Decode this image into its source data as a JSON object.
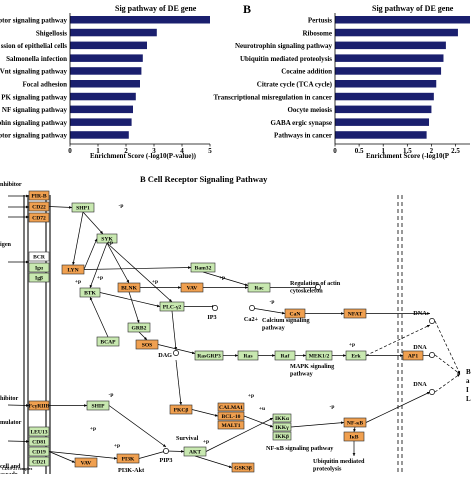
{
  "panel_a": {
    "title": "Sig pathway of DE gene",
    "categories": [
      "ptor signaling pathway",
      "Shigellosis",
      "ssion of epithelial cells",
      "Salmonella infection",
      "Vnt signaling pathway",
      "Focal adhesion",
      "PK signaling pathway",
      "NF signaling pathway",
      "phin signaling pathway",
      "eptor signaling pathway"
    ],
    "values": [
      5.0,
      3.1,
      2.75,
      2.6,
      2.55,
      2.5,
      2.35,
      2.25,
      2.2,
      2.1
    ],
    "xlim": [
      0,
      5
    ],
    "ticks": [
      "0",
      "1",
      "2",
      "3",
      "4",
      "5"
    ],
    "xlabel": "Enrichment Score (-log10(P-value))",
    "bar_color": "#1a1f6e"
  },
  "panel_b": {
    "letter": "B",
    "title": "Sig pathway of DE gene",
    "categories": [
      "Pertusis",
      "Ribosome",
      "Neurotrophin signaling pathway",
      "Ubiquitin mediated proteolysis",
      "Cocaine addition",
      "Citrate cycle (TCA cycle)",
      "Transcriptional misregulation in cancer",
      "Oocyte meiosis",
      "GABA ergic synapse",
      "Pathways in cancer"
    ],
    "values": [
      2.8,
      2.55,
      2.3,
      2.25,
      2.2,
      2.1,
      2.05,
      2.0,
      1.95,
      1.9
    ],
    "xlim": [
      0,
      2.8
    ],
    "ticks": [
      "0",
      "0.5",
      "1",
      "1.5",
      "2",
      "2.5"
    ],
    "xlabel": "Enrichment Score (-log10(P",
    "bar_color": "#1a1f6e"
  },
  "pathway": {
    "title": "B Cell Receptor Signaling Pathway",
    "colors": {
      "orange": "#f0a050",
      "green": "#c8e8b0",
      "border": "#2a2a2a"
    },
    "left_labels": [
      "nhibitor",
      "igen",
      "hibitor",
      "mulator",
      "cell and\nascade"
    ],
    "complex_labels": {
      "cd19": "CD19-21 complex",
      "bcr": "BCR",
      "igo": "Igα",
      "igb": "Igβ"
    },
    "nodes": {
      "pir_b": "PIR-B",
      "cd22": "CD22",
      "cd72": "CD72",
      "shp1": "SHP1",
      "leu13": "LEU13",
      "cd81": "CD81",
      "cd19": "CD19",
      "cd21": "CD21",
      "fcgriib": "FcγRIIB",
      "lyn": "LYN",
      "syk": "SYK",
      "btk": "BTK",
      "blnk": "BLNK",
      "vav1": "VAV",
      "bam32": "Bam32",
      "rac": "Rac",
      "plcg2": "PLC-γ2",
      "grb2": "GRB2",
      "sos": "SOS",
      "bcap": "BCAP",
      "rasgrp3": "RasGRP3",
      "ras": "Ras",
      "raf": "Raf",
      "mek": "MEK1/2",
      "erk": "Erk",
      "ap1": "AP1",
      "can": "CaN",
      "nfat": "NFAT",
      "ship": "SHIP",
      "pkcb": "PKCβ",
      "calma1": "CALMA1",
      "bcl10": "BCL-10",
      "malt1": "MALT1",
      "ikka": "IKKα",
      "ikkg": "IKKγ",
      "ikkb": "IKKβ",
      "nfkb": "NF-κB",
      "ikb": "IκB",
      "pi3k": "PI3K",
      "vav2": "VAV",
      "akt": "AKT",
      "gsk3b": "GSK3β"
    },
    "text_labels": {
      "reg_actin": "Regulation of actin\ncytoskeleton",
      "ip3": "IP3",
      "ca": "Ca2+",
      "calcium": "Calcium signaling\npathway",
      "dag": "DAG",
      "mapk": "MAPK signaling\npathway",
      "survival": "Survival",
      "nfkb_path": "NF-κB signaling pathway",
      "pip3": "PIP3",
      "pi3k_akt": "PI3K-Akt\nsignaling pathway",
      "ubiq": "Ubiquitin mediated\nproteolysis",
      "dna": "DNA",
      "plus_p": "+p",
      "minus_p": "-p",
      "plus_u": "+u",
      "right_edge": [
        "B",
        "a",
        "I",
        "L"
      ]
    }
  }
}
